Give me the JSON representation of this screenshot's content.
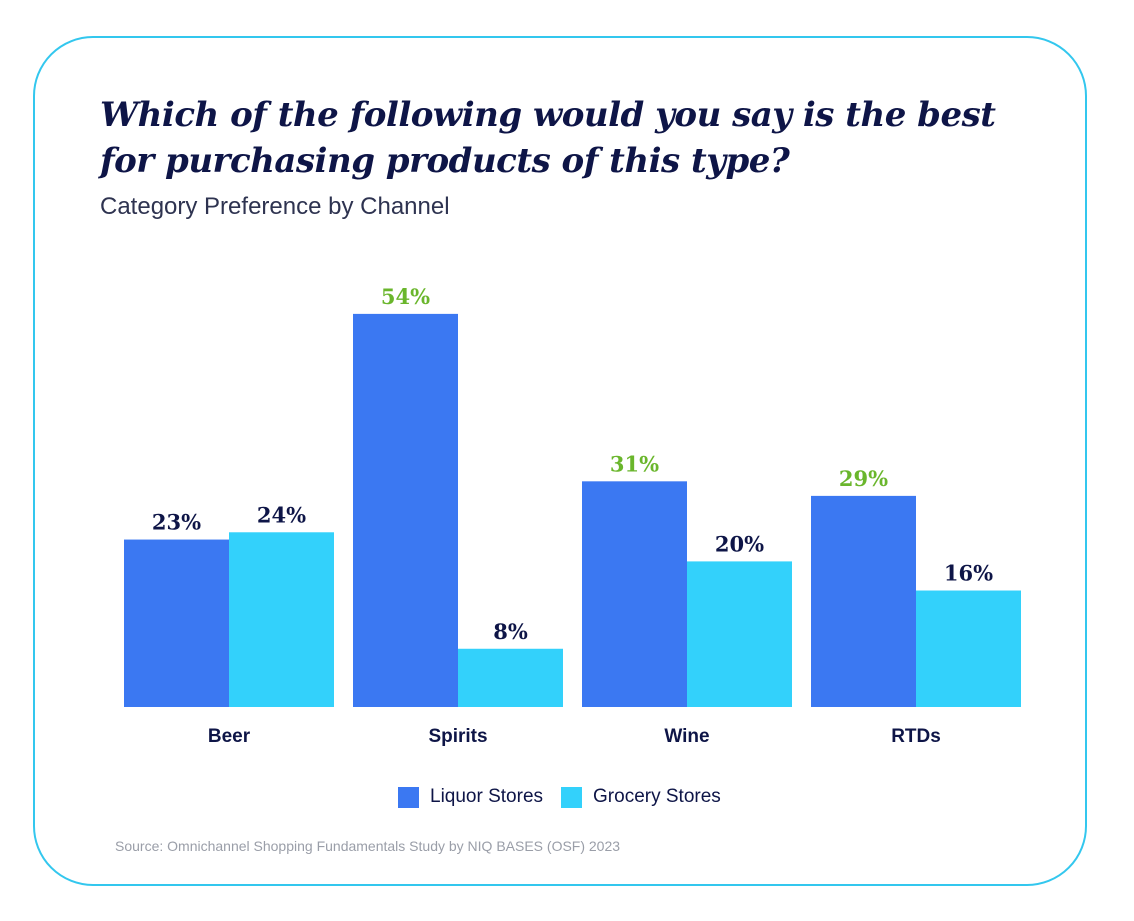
{
  "title": "Which of the following would you say is the best for purchasing products of this type?",
  "subtitle": "Category Preference by Channel",
  "source": "Source: Omnichannel Shopping Fundamentals Study by NIQ BASES (OSF) 2023",
  "colors": {
    "liquor": "#3b78f2",
    "grocery": "#33d1fb",
    "highlight_label": "#6ab62c",
    "label": "#0e1547",
    "frame": "#33c7ee"
  },
  "chart_data": {
    "type": "bar",
    "categories": [
      "Beer",
      "Spirits",
      "Wine",
      "RTDs"
    ],
    "series": [
      {
        "name": "Liquor Stores",
        "values": [
          23,
          54,
          31,
          29
        ],
        "color": "#3b78f2"
      },
      {
        "name": "Grocery Stores",
        "values": [
          24,
          8,
          20,
          16
        ],
        "color": "#33d1fb"
      }
    ],
    "value_labels": [
      [
        "23%",
        "54%",
        "31%",
        "29%"
      ],
      [
        "24%",
        "8%",
        "20%",
        "16%"
      ]
    ],
    "highlighted_labels": [
      [
        false,
        true,
        true,
        true
      ],
      [
        false,
        false,
        false,
        false
      ]
    ],
    "legend_position": "bottom",
    "grid": false,
    "ylim": [
      0,
      54
    ]
  }
}
